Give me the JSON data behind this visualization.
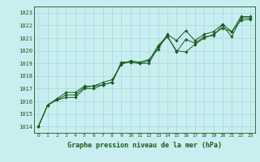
{
  "title": "Graphe pression niveau de la mer (hPa)",
  "xlabel": "Graphe pression niveau de la mer (hPa)",
  "ylabel": "",
  "bg_color": "#c8eef0",
  "grid_color": "#aadde0",
  "line_color": "#1a5c1a",
  "marker_color": "#1a5c1a",
  "ylim": [
    1013.5,
    1023.5
  ],
  "xlim": [
    -0.5,
    23.5
  ],
  "yticks": [
    1014,
    1015,
    1016,
    1017,
    1018,
    1019,
    1020,
    1021,
    1022,
    1023
  ],
  "xticks": [
    0,
    1,
    2,
    3,
    4,
    5,
    6,
    7,
    8,
    9,
    10,
    11,
    12,
    13,
    14,
    15,
    16,
    17,
    18,
    19,
    20,
    21,
    22,
    23
  ],
  "series": [
    [
      1014.0,
      1015.7,
      1016.1,
      1016.5,
      1016.5,
      1017.1,
      1017.2,
      1017.3,
      1017.5,
      1019.0,
      1019.1,
      1019.0,
      1019.2,
      1020.4,
      1021.2,
      1019.9,
      1020.9,
      1020.6,
      1021.1,
      1021.2,
      1022.0,
      1021.1,
      1022.6,
      1022.6
    ],
    [
      1014.0,
      1015.7,
      1016.1,
      1016.3,
      1016.3,
      1017.0,
      1017.0,
      1017.3,
      1017.5,
      1019.1,
      1019.1,
      1019.0,
      1019.0,
      1020.3,
      1021.1,
      1020.0,
      1019.9,
      1020.5,
      1021.0,
      1021.3,
      1021.8,
      1021.5,
      1022.4,
      1022.5
    ],
    [
      1014.0,
      1015.7,
      1016.2,
      1016.7,
      1016.7,
      1017.2,
      1017.2,
      1017.5,
      1017.7,
      1018.9,
      1019.2,
      1019.1,
      1019.3,
      1020.1,
      1021.3,
      1020.8,
      1021.6,
      1020.8,
      1021.3,
      1021.5,
      1022.1,
      1021.5,
      1022.7,
      1022.7
    ]
  ]
}
